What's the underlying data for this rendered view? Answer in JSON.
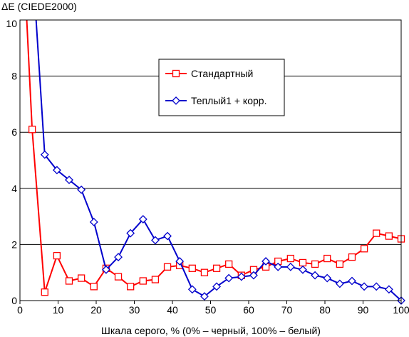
{
  "chart_data": {
    "type": "line",
    "title": "",
    "ylabel": "ΔE (CIEDE2000)",
    "xlabel": "Шкала серого, % (0% – черный, 100% – белый)",
    "xlim": [
      0,
      100
    ],
    "ylim": [
      0,
      10
    ],
    "xticks": [
      0,
      10,
      20,
      30,
      40,
      50,
      60,
      70,
      80,
      90,
      100
    ],
    "yticks": [
      0,
      2,
      4,
      6,
      8,
      10
    ],
    "grid": "horizontal",
    "legend": "upper-center",
    "series": [
      {
        "name": "Стандартный",
        "color": "#ff0000",
        "marker": "square",
        "start": [
          1.6,
          10.5
        ],
        "x": [
          3.2,
          6.5,
          9.7,
          12.9,
          16.1,
          19.4,
          22.6,
          25.8,
          29.0,
          32.3,
          35.5,
          38.7,
          41.9,
          45.2,
          48.4,
          51.6,
          54.8,
          58.1,
          61.3,
          64.5,
          67.7,
          71.0,
          74.2,
          77.4,
          80.6,
          83.9,
          87.1,
          90.3,
          93.5,
          96.8,
          100
        ],
        "y": [
          6.1,
          0.3,
          1.6,
          0.7,
          0.8,
          0.5,
          1.15,
          0.85,
          0.5,
          0.7,
          0.75,
          1.2,
          1.25,
          1.15,
          1.0,
          1.15,
          1.3,
          0.9,
          1.1,
          1.2,
          1.4,
          1.5,
          1.35,
          1.3,
          1.5,
          1.3,
          1.55,
          1.85,
          2.4,
          2.3,
          2.2
        ]
      },
      {
        "name": "Теплый1 + корр.",
        "color": "#0000cc",
        "marker": "diamond",
        "start": [
          4.0,
          10.5
        ],
        "x": [
          6.5,
          9.7,
          12.9,
          16.1,
          19.4,
          22.6,
          25.8,
          29.0,
          32.3,
          35.5,
          38.7,
          41.9,
          45.2,
          48.4,
          51.6,
          54.8,
          58.1,
          61.3,
          64.5,
          67.7,
          71.0,
          74.2,
          77.4,
          80.6,
          83.9,
          87.1,
          90.3,
          93.5,
          96.8,
          100
        ],
        "y": [
          5.2,
          4.65,
          4.3,
          3.95,
          2.8,
          1.1,
          1.55,
          2.4,
          2.9,
          2.15,
          2.3,
          1.4,
          0.4,
          0.15,
          0.5,
          0.8,
          0.85,
          0.9,
          1.4,
          1.2,
          1.2,
          1.1,
          0.9,
          0.8,
          0.6,
          0.7,
          0.5,
          0.5,
          0.4,
          0.0
        ]
      }
    ]
  }
}
